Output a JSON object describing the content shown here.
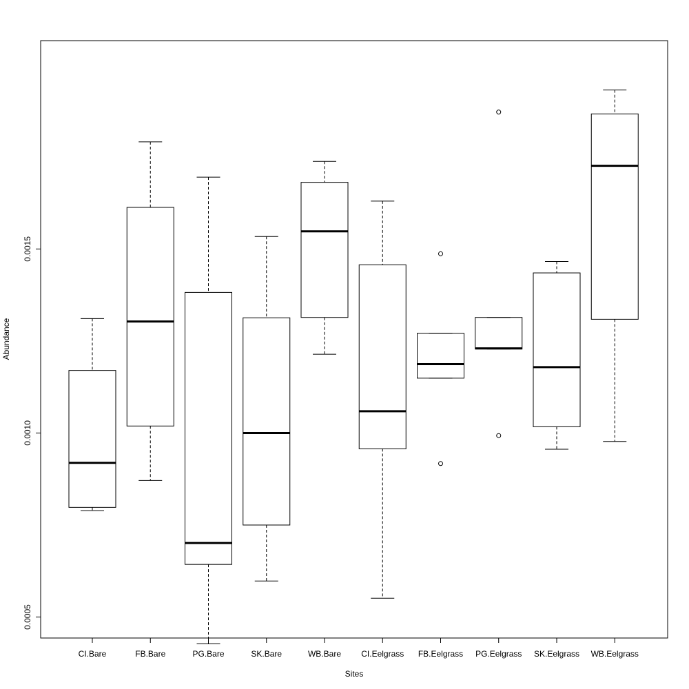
{
  "chart_data": {
    "type": "boxplot",
    "xlabel": "Sites",
    "ylabel": "Abundance",
    "ylim": [
      0.000443,
      0.002066
    ],
    "yticks": [
      0.0005,
      0.001,
      0.0015
    ],
    "ytick_labels": [
      "0.0005",
      "0.0010",
      "0.0015"
    ],
    "categories": [
      "CI.Bare",
      "FB.Bare",
      "PG.Bare",
      "SK.Bare",
      "WB.Bare",
      "CI.Eelgrass",
      "FB.Eelgrass",
      "PG.Eelgrass",
      "SK.Eelgrass",
      "WB.Eelgrass"
    ],
    "boxes": [
      {
        "min": 0.000789,
        "q1": 0.000798,
        "median": 0.000919,
        "q3": 0.00117,
        "max": 0.001311,
        "outliers": []
      },
      {
        "min": 0.000871,
        "q1": 0.001019,
        "median": 0.001303,
        "q3": 0.001613,
        "max": 0.001791,
        "outliers": []
      },
      {
        "min": 0.000427,
        "q1": 0.000643,
        "median": 0.000701,
        "q3": 0.001382,
        "max": 0.001695,
        "outliers": []
      },
      {
        "min": 0.000598,
        "q1": 0.00075,
        "median": 0.001,
        "q3": 0.001313,
        "max": 0.001534,
        "outliers": []
      },
      {
        "min": 0.001214,
        "q1": 0.001314,
        "median": 0.001548,
        "q3": 0.001681,
        "max": 0.001738,
        "outliers": []
      },
      {
        "min": 0.000551,
        "q1": 0.000957,
        "median": 0.001059,
        "q3": 0.001457,
        "max": 0.00163,
        "outliers": []
      },
      {
        "min": 0.001149,
        "q1": 0.001149,
        "median": 0.001187,
        "q3": 0.001271,
        "max": 0.001271,
        "outliers": [
          0.000917,
          0.001487
        ]
      },
      {
        "min": 0.001228,
        "q1": 0.001228,
        "median": 0.00123,
        "q3": 0.001314,
        "max": 0.001314,
        "outliers": [
          0.000993,
          0.001872
        ]
      },
      {
        "min": 0.000956,
        "q1": 0.001017,
        "median": 0.001179,
        "q3": 0.001435,
        "max": 0.001466,
        "outliers": []
      },
      {
        "min": 0.000977,
        "q1": 0.001309,
        "median": 0.001726,
        "q3": 0.001867,
        "max": 0.001932,
        "outliers": []
      }
    ]
  }
}
